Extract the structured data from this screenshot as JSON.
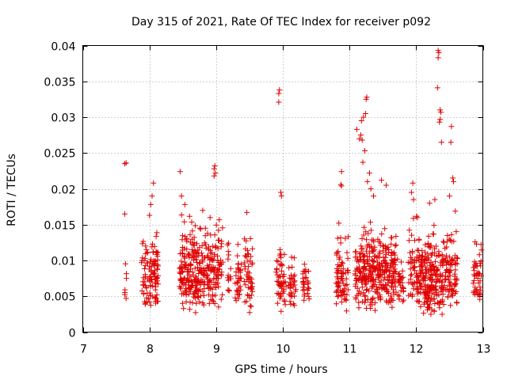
{
  "chart_data": {
    "type": "scatter",
    "title": "Day 315 of 2021, Rate Of TEC Index for receiver p092",
    "xlabel": "GPS time / hours",
    "ylabel": "ROTI / TECUs",
    "xlim": [
      7,
      13
    ],
    "ylim": [
      0,
      0.04
    ],
    "x_ticks": [
      7,
      8,
      9,
      10,
      11,
      12,
      13
    ],
    "x_tick_labels": [
      "7",
      "8",
      "9",
      "10",
      "11",
      "12",
      "13"
    ],
    "y_ticks": [
      0,
      0.005,
      0.01,
      0.015,
      0.02,
      0.025,
      0.03,
      0.035,
      0.04
    ],
    "y_tick_labels": [
      "0",
      "0.005",
      "0.01",
      "0.015",
      "0.02",
      "0.025",
      "0.03",
      "0.035",
      "0.04"
    ],
    "grid": true,
    "marker": "plus",
    "series_color": "#e00000",
    "clusters": [
      {
        "x_start": 7.62,
        "x_end": 7.66,
        "y_min": 0.003,
        "y_max": 0.0122,
        "count": 8,
        "seed": 11
      },
      {
        "x_start": 7.88,
        "x_end": 8.14,
        "y_min": 0.0025,
        "y_max": 0.0165,
        "count": 110,
        "seed": 12
      },
      {
        "x_start": 8.45,
        "x_end": 8.95,
        "y_min": 0.0025,
        "y_max": 0.0185,
        "count": 260,
        "seed": 13
      },
      {
        "x_start": 8.95,
        "x_end": 9.1,
        "y_min": 0.0025,
        "y_max": 0.0185,
        "count": 60,
        "seed": 14
      },
      {
        "x_start": 9.17,
        "x_end": 9.22,
        "y_min": 0.0035,
        "y_max": 0.0155,
        "count": 15,
        "seed": 15
      },
      {
        "x_start": 9.28,
        "x_end": 9.38,
        "y_min": 0.003,
        "y_max": 0.0135,
        "count": 35,
        "seed": 16
      },
      {
        "x_start": 9.42,
        "x_end": 9.55,
        "y_min": 0.0025,
        "y_max": 0.0165,
        "count": 50,
        "seed": 17
      },
      {
        "x_start": 9.9,
        "x_end": 10.05,
        "y_min": 0.0015,
        "y_max": 0.0155,
        "count": 55,
        "seed": 18
      },
      {
        "x_start": 10.08,
        "x_end": 10.2,
        "y_min": 0.003,
        "y_max": 0.0125,
        "count": 35,
        "seed": 19
      },
      {
        "x_start": 10.3,
        "x_end": 10.4,
        "y_min": 0.0035,
        "y_max": 0.012,
        "count": 30,
        "seed": 20
      },
      {
        "x_start": 10.8,
        "x_end": 10.98,
        "y_min": 0.0025,
        "y_max": 0.0155,
        "count": 75,
        "seed": 21
      },
      {
        "x_start": 11.08,
        "x_end": 11.7,
        "y_min": 0.0025,
        "y_max": 0.0175,
        "count": 330,
        "seed": 22
      },
      {
        "x_start": 11.72,
        "x_end": 11.82,
        "y_min": 0.0035,
        "y_max": 0.013,
        "count": 28,
        "seed": 23
      },
      {
        "x_start": 11.88,
        "x_end": 11.98,
        "y_min": 0.0025,
        "y_max": 0.0175,
        "count": 35,
        "seed": 24
      },
      {
        "x_start": 12.0,
        "x_end": 12.42,
        "y_min": 0.002,
        "y_max": 0.0165,
        "count": 250,
        "seed": 25
      },
      {
        "x_start": 12.42,
        "x_end": 12.62,
        "y_min": 0.0025,
        "y_max": 0.0175,
        "count": 80,
        "seed": 26
      },
      {
        "x_start": 12.85,
        "x_end": 12.98,
        "y_min": 0.0035,
        "y_max": 0.0155,
        "count": 45,
        "seed": 27
      }
    ],
    "highlight_points": [
      [
        7.63,
        0.0235
      ],
      [
        7.65,
        0.0236
      ],
      [
        7.63,
        0.0165
      ],
      [
        8.06,
        0.0208
      ],
      [
        8.04,
        0.019
      ],
      [
        8.02,
        0.0178
      ],
      [
        8.0,
        0.0163
      ],
      [
        8.46,
        0.0224
      ],
      [
        8.48,
        0.019
      ],
      [
        8.53,
        0.0178
      ],
      [
        8.98,
        0.0232
      ],
      [
        8.97,
        0.0228
      ],
      [
        8.99,
        0.0222
      ],
      [
        8.97,
        0.0218
      ],
      [
        9.46,
        0.0167
      ],
      [
        9.94,
        0.0333
      ],
      [
        9.95,
        0.0338
      ],
      [
        9.94,
        0.0321
      ],
      [
        9.97,
        0.0195
      ],
      [
        9.98,
        0.019
      ],
      [
        10.88,
        0.0224
      ],
      [
        10.87,
        0.0206
      ],
      [
        10.88,
        0.0204
      ],
      [
        10.84,
        0.0152
      ],
      [
        11.11,
        0.0283
      ],
      [
        11.15,
        0.027
      ],
      [
        11.17,
        0.0275
      ],
      [
        11.19,
        0.0268
      ],
      [
        11.18,
        0.0295
      ],
      [
        11.21,
        0.03
      ],
      [
        11.24,
        0.0305
      ],
      [
        11.26,
        0.0328
      ],
      [
        11.25,
        0.0325
      ],
      [
        11.23,
        0.0253
      ],
      [
        11.2,
        0.0237
      ],
      [
        11.3,
        0.0222
      ],
      [
        11.27,
        0.021
      ],
      [
        11.32,
        0.02
      ],
      [
        11.36,
        0.019
      ],
      [
        11.48,
        0.0212
      ],
      [
        11.55,
        0.0205
      ],
      [
        11.95,
        0.0208
      ],
      [
        11.93,
        0.0195
      ],
      [
        11.96,
        0.0185
      ],
      [
        12.33,
        0.0393
      ],
      [
        12.34,
        0.039
      ],
      [
        12.33,
        0.0383
      ],
      [
        12.32,
        0.0341
      ],
      [
        12.36,
        0.031
      ],
      [
        12.37,
        0.0307
      ],
      [
        12.36,
        0.0297
      ],
      [
        12.35,
        0.0293
      ],
      [
        12.38,
        0.0265
      ],
      [
        12.53,
        0.0287
      ],
      [
        12.52,
        0.0265
      ],
      [
        12.55,
        0.0215
      ],
      [
        12.56,
        0.021
      ],
      [
        12.5,
        0.019
      ],
      [
        12.2,
        0.018
      ],
      [
        12.28,
        0.0185
      ],
      [
        12.02,
        0.016
      ]
    ]
  }
}
